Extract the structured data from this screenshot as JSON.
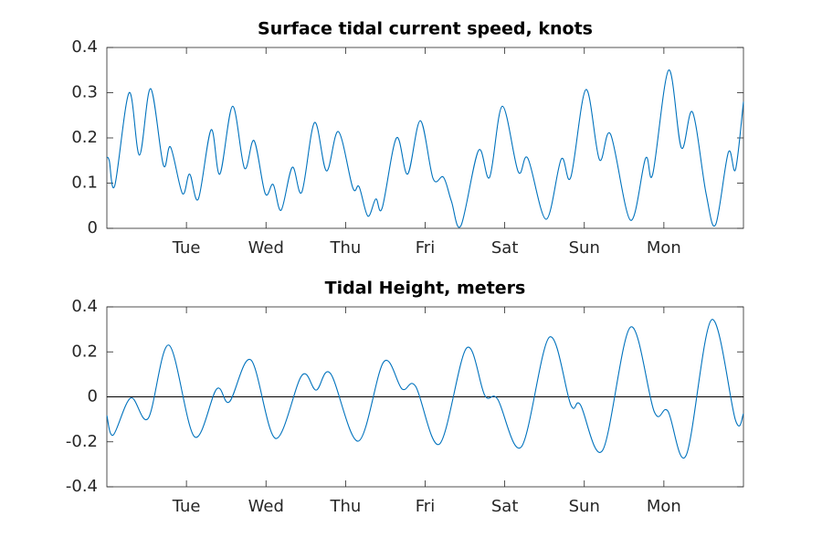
{
  "chart_data": [
    {
      "type": "line",
      "title": "Surface tidal current speed, knots",
      "color": "#0072bd",
      "x": [
        0,
        0.03,
        0.1,
        0.28,
        0.41,
        0.55,
        0.71,
        0.8,
        0.95,
        1.04,
        1.15,
        1.31,
        1.42,
        1.58,
        1.73,
        1.85,
        1.99,
        2.09,
        2.19,
        2.33,
        2.45,
        2.61,
        2.76,
        2.91,
        3.09,
        3.17,
        3.28,
        3.38,
        3.46,
        3.64,
        3.78,
        3.94,
        4.1,
        4.23,
        4.33,
        4.45,
        4.67,
        4.81,
        4.97,
        5.17,
        5.29,
        5.52,
        5.71,
        5.83,
        6.02,
        6.19,
        6.33,
        6.58,
        6.77,
        6.86,
        7.06,
        7.22,
        7.36,
        7.53,
        7.65,
        7.81,
        7.9,
        8.0
      ],
      "values": [
        0.157,
        0.15,
        0.095,
        0.3,
        0.162,
        0.309,
        0.14,
        0.18,
        0.077,
        0.12,
        0.065,
        0.218,
        0.12,
        0.27,
        0.133,
        0.194,
        0.077,
        0.097,
        0.04,
        0.135,
        0.08,
        0.234,
        0.127,
        0.214,
        0.09,
        0.092,
        0.027,
        0.065,
        0.045,
        0.2,
        0.12,
        0.238,
        0.11,
        0.113,
        0.06,
        0.006,
        0.172,
        0.113,
        0.27,
        0.125,
        0.155,
        0.02,
        0.153,
        0.113,
        0.307,
        0.152,
        0.208,
        0.018,
        0.155,
        0.12,
        0.35,
        0.178,
        0.257,
        0.077,
        0.008,
        0.168,
        0.13,
        0.28
      ],
      "xlim": [
        0,
        8
      ],
      "xticks": [
        {
          "value": 1,
          "label": "Tue"
        },
        {
          "value": 2,
          "label": "Wed"
        },
        {
          "value": 3,
          "label": "Thu"
        },
        {
          "value": 4,
          "label": "Fri"
        },
        {
          "value": 5,
          "label": "Sat"
        },
        {
          "value": 6,
          "label": "Sun"
        },
        {
          "value": 7,
          "label": "Mon"
        }
      ],
      "ylim": [
        0,
        0.4
      ],
      "yticks": [
        0,
        0.1,
        0.2,
        0.3,
        0.4
      ],
      "zero_line": false
    },
    {
      "type": "line",
      "title": "Tidal Height, meters",
      "color": "#0072bd",
      "x": [
        0,
        0.08,
        0.3,
        0.52,
        0.78,
        1.1,
        1.38,
        1.54,
        1.81,
        2.12,
        2.45,
        2.63,
        2.81,
        3.16,
        3.48,
        3.71,
        3.88,
        4.18,
        4.52,
        4.75,
        4.91,
        5.21,
        5.56,
        5.83,
        5.95,
        6.23,
        6.58,
        6.88,
        7.05,
        7.28,
        7.6,
        7.9,
        8.0
      ],
      "values": [
        -0.083,
        -0.17,
        -0.005,
        -0.095,
        0.23,
        -0.177,
        0.035,
        -0.022,
        0.164,
        -0.185,
        0.095,
        0.03,
        0.104,
        -0.197,
        0.156,
        0.035,
        0.047,
        -0.21,
        0.217,
        0.006,
        -0.01,
        -0.222,
        0.265,
        -0.035,
        -0.035,
        -0.238,
        0.31,
        -0.067,
        -0.063,
        -0.26,
        0.343,
        -0.104,
        -0.075
      ],
      "xlim": [
        0,
        8
      ],
      "xticks": [
        {
          "value": 1,
          "label": "Tue"
        },
        {
          "value": 2,
          "label": "Wed"
        },
        {
          "value": 3,
          "label": "Thu"
        },
        {
          "value": 4,
          "label": "Fri"
        },
        {
          "value": 5,
          "label": "Sat"
        },
        {
          "value": 6,
          "label": "Sun"
        },
        {
          "value": 7,
          "label": "Mon"
        }
      ],
      "ylim": [
        -0.4,
        0.4
      ],
      "yticks": [
        -0.4,
        -0.2,
        0,
        0.2,
        0.4
      ],
      "zero_line": true
    }
  ]
}
